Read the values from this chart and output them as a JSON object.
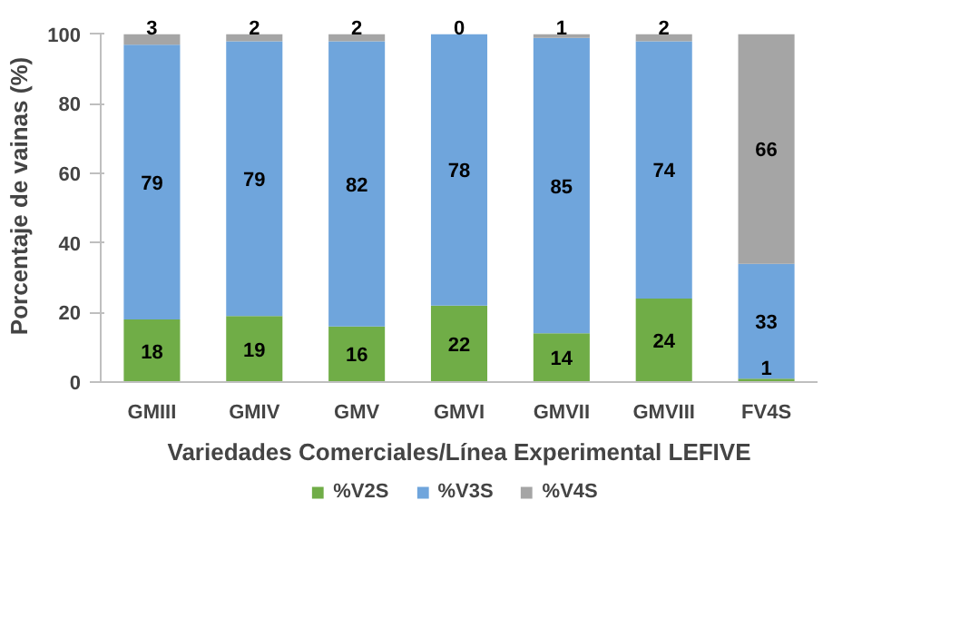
{
  "chart_data": {
    "type": "bar",
    "stacked": true,
    "xlabel": "Variedades Comerciales/Línea Experimental LEFIVE",
    "ylabel": "Porcentaje de vainas (%)",
    "categories": [
      "GMIII",
      "GMIV",
      "GMV",
      "GMVI",
      "GMVII",
      "GMVIII",
      "FV4S"
    ],
    "series": [
      {
        "name": "%V2S",
        "color": "#70ad47",
        "values": [
          18,
          19,
          16,
          22,
          14,
          24,
          1
        ]
      },
      {
        "name": "%V3S",
        "color": "#6fa5dc",
        "values": [
          79,
          79,
          82,
          78,
          85,
          74,
          33
        ]
      },
      {
        "name": "%V4S",
        "color": "#a5a5a5",
        "values": [
          3,
          2,
          2,
          0,
          1,
          2,
          66
        ]
      }
    ],
    "ylim": [
      0,
      100
    ],
    "yticks": [
      0,
      20,
      40,
      60,
      80,
      100
    ],
    "data_labels": true,
    "legend": "bottom",
    "grid": false
  }
}
